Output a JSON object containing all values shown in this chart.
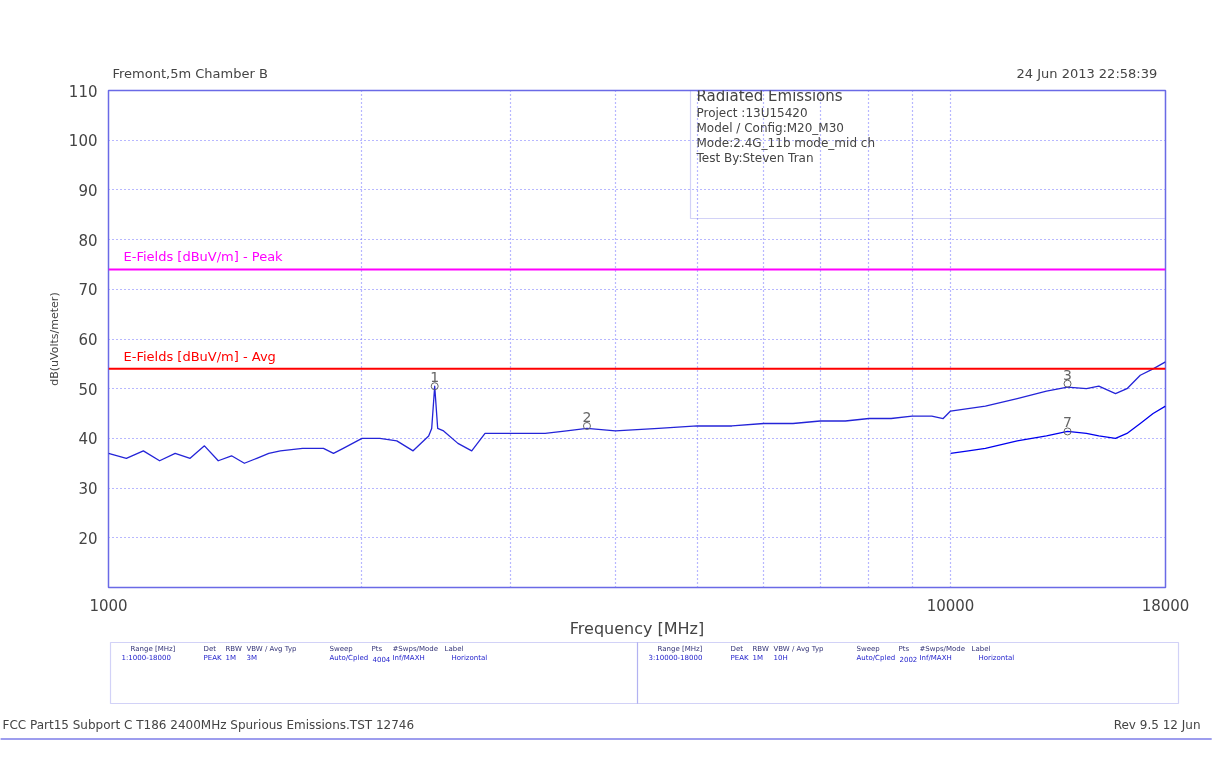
{
  "chart_data": {
    "type": "line",
    "title": "Fremont,5m Chamber B",
    "subtitle": "24 Jun 2013   22:58:39",
    "xlabel": "Frequency [MHz]",
    "ylabel": "dB(uVolts/meter)",
    "log": "x",
    "grid": true,
    "marker": "none",
    "line_style": "solid",
    "xlim": [
      1000,
      18000
    ],
    "xticks": [
      1000,
      {
        "value": 2000,
        "label": null
      },
      {
        "value": 3000,
        "label": null
      },
      {
        "value": 4000,
        "label": null
      },
      {
        "value": 5000,
        "label": null
      },
      {
        "value": 6000,
        "label": null
      },
      {
        "value": 7000,
        "label": null
      },
      {
        "value": 8000,
        "label": null
      },
      {
        "value": 9000,
        "label": null
      },
      10000,
      18000
    ],
    "ylim": [
      10,
      110
    ],
    "yticks": [
      20,
      30,
      40,
      50,
      60,
      70,
      80,
      90,
      100,
      110
    ],
    "series": [
      {
        "color": "#2424d8",
        "x": [
          1000,
          1050,
          1100,
          1150,
          1200,
          1250,
          1300,
          1350,
          1400,
          1450,
          1500,
          1550,
          1600,
          1700,
          1800,
          1850,
          1900,
          2000,
          2100,
          2200,
          2300,
          2400,
          2420,
          2440,
          2460,
          2500,
          2600,
          2700,
          2800,
          3000,
          3300,
          3500,
          3700,
          4000,
          4500,
          5000,
          5500,
          6000,
          6500,
          7000,
          7500,
          8000,
          8500,
          9000,
          9500,
          9800,
          10000,
          11000,
          12000,
          13000,
          13770,
          14500,
          15000,
          15700,
          16200,
          16800,
          17400,
          18000
        ],
        "values": [
          37,
          36,
          37.5,
          35.5,
          37,
          36,
          38.5,
          35.5,
          36.5,
          35,
          36,
          37,
          37.5,
          38,
          38,
          37,
          38,
          40,
          40,
          39.5,
          37.5,
          40.5,
          42,
          50.5,
          42,
          41.5,
          39,
          37.5,
          41,
          41,
          41,
          41.5,
          42,
          41.5,
          42,
          42.5,
          42.5,
          43,
          43,
          43.5,
          43.5,
          44,
          44,
          44.5,
          44.5,
          44,
          45.5,
          46.5,
          48,
          49.5,
          50.3,
          50,
          50.5,
          49,
          50,
          52.7,
          54,
          55.4
        ]
      },
      {
        "color": "#0000ee",
        "x": [
          10000,
          10500,
          11000,
          12000,
          13000,
          13770,
          14500,
          15000,
          15700,
          16200,
          16800,
          17400,
          18000
        ],
        "values": [
          37,
          37.5,
          38,
          39.5,
          40.5,
          41.4,
          41,
          40.5,
          40,
          41,
          43,
          45,
          46.5
        ]
      }
    ],
    "ref_lines": [
      {
        "axis": "y",
        "value": 74,
        "label": "E-Fields [dBuV/m] - Peak",
        "color": "#ff00ff",
        "line_style": "solid"
      },
      {
        "axis": "y",
        "value": 54,
        "label": "E-Fields [dBuV/m] - Avg",
        "color": "#ff0000",
        "line_style": "solid"
      }
    ],
    "annotations": [
      "Radiated Emissions",
      "Project :13U15420",
      "Model / Config:M20_M30",
      "Mode:2.4G_11b mode_mid ch",
      "Test By:Steven Tran",
      "Range [MHz]",
      "Det",
      "RBW",
      "VBW / Avg Typ",
      "Sweep",
      "Pts",
      "#Swps/Mode",
      "Label",
      "1:1000-18000",
      "PEAK",
      "1M",
      "3M",
      "Auto/Cpled",
      "4004",
      "Inf/MAXH",
      "Horizontal",
      "Range [MHz]",
      "Det",
      "RBW",
      "VBW / Avg Typ",
      "Sweep",
      "Pts",
      "#Swps/Mode",
      "Label",
      "3:10000-18000",
      "PEAK",
      "1M",
      "10H",
      "Auto/Cpled",
      "2002",
      "Inf/MAXH",
      "Horizontal",
      "FCC Part15 Subport C T186 2400MHz Spurious Emissions.TST 12746",
      "Rev 9.5 12 Jun",
      {
        "text": "1",
        "x": 2440,
        "y": 50.5
      },
      {
        "text": "2",
        "x": 3700,
        "y": 42.5
      },
      {
        "text": "3",
        "x": 13770,
        "y": 51
      },
      {
        "text": "7",
        "x": 13770,
        "y": 41.4
      }
    ]
  }
}
